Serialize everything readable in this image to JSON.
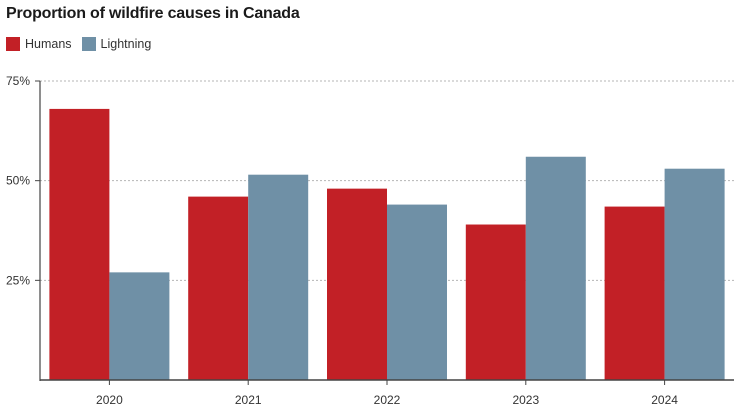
{
  "chart_data": {
    "type": "bar",
    "title": "Proportion of wildfire causes in Canada",
    "xlabel": "",
    "ylabel": "",
    "categories": [
      "2020",
      "2021",
      "2022",
      "2023",
      "2024"
    ],
    "series": [
      {
        "name": "Humans",
        "color": "#c22026",
        "values": [
          68,
          46,
          48,
          39,
          43.5
        ]
      },
      {
        "name": "Lightning",
        "color": "#6f90a6",
        "values": [
          27,
          51.5,
          44,
          56,
          53
        ]
      }
    ],
    "ylim": [
      0,
      75
    ],
    "yticks": [
      25,
      50,
      75
    ],
    "ytick_labels": [
      "25%",
      "50%",
      "75%"
    ],
    "grid": "horizontal dotted",
    "legend_position": "top-left"
  }
}
